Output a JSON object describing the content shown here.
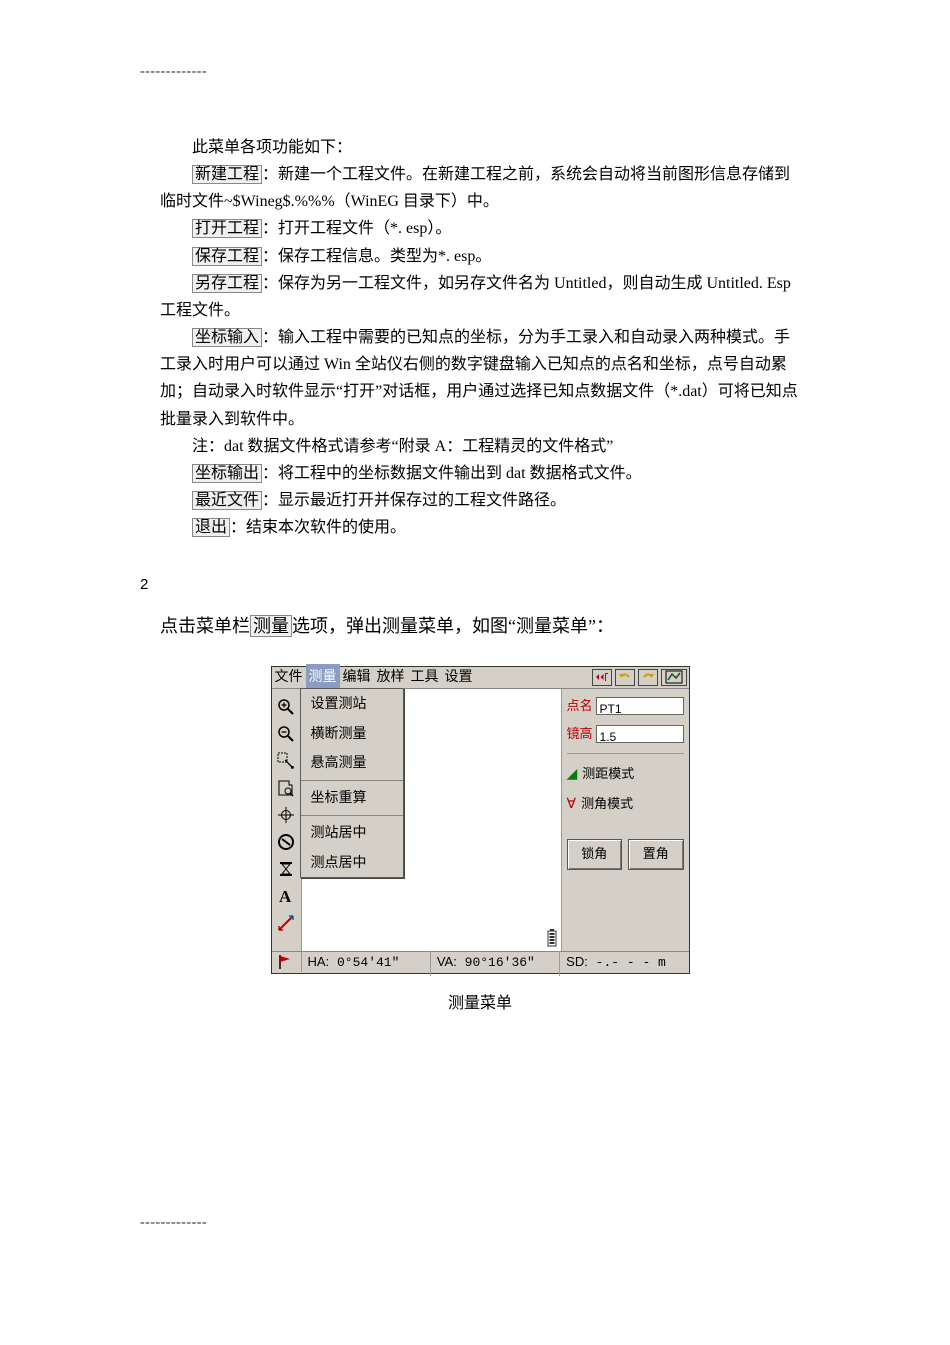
{
  "dashes": "-------------",
  "text": {
    "intro": "此菜单各项功能如下：",
    "p1_label": "新建工程",
    "p1_rest": "：新建一个工程文件。在新建工程之前，系统会自动将当前图形信息存储到临时文件~$Wineg$.%%%（WinEG 目录下）中。",
    "p2_label": "打开工程",
    "p2_rest": "：打开工程文件（*. esp）。",
    "p3_label": "保存工程",
    "p3_rest": "：保存工程信息。类型为*. esp。",
    "p4_label": "另存工程",
    "p4_rest": "：保存为另一工程文件，如另存文件名为 Untitled，则自动生成 Untitled. Esp 工程文件。",
    "p5_label": "坐标输入",
    "p5_rest": "：输入工程中需要的已知点的坐标，分为手工录入和自动录入两种模式。手工录入时用户可以通过 Win 全站仪右侧的数字键盘输入已知点的点名和坐标，点号自动累加；自动录入时软件显示“打开”对话框，用户通过选择已知点数据文件（*.dat）可将已知点批量录入到软件中。",
    "p6_note": "注：dat 数据文件格式请参考“附录 A：工程精灵的文件格式”",
    "p7_label": "坐标输出",
    "p7_rest": "：将工程中的坐标数据文件输出到 dat 数据格式文件。",
    "p8_label": "最近文件",
    "p8_rest": "：显示最近打开并保存过的工程文件路径。",
    "p9_label": "退出",
    "p9_rest": "：结束本次软件的使用。",
    "section_num": "2",
    "lead_pre": "点击菜单栏",
    "lead_box": "测量",
    "lead_post": "选项，弹出测量菜单，如图“测量菜单”："
  },
  "app": {
    "menubar": [
      "文件",
      "测量",
      "编辑",
      "放样",
      "工具",
      "设置"
    ],
    "active_menu_index": 1,
    "dropdown": [
      "设置测站",
      "横断测量",
      "悬高测量",
      "|",
      "坐标重算",
      "|",
      "测站居中",
      "测点居中"
    ],
    "right": {
      "name_label": "点名",
      "name_value": "PT1",
      "ht_label": "镜高",
      "ht_value": "1.5",
      "mode1": "测距模式",
      "mode2": "测角模式",
      "btn1": "锁角",
      "btn2": "置角"
    },
    "status": {
      "ha_key": "HA:",
      "ha_val": "0°54'41\"",
      "va_key": "VA:",
      "va_val": "90°16'36\"",
      "sd_key": "SD:",
      "sd_val": "-.- - -  m"
    },
    "caption": "测量菜单"
  },
  "colors": {
    "winbg": "#d4d0c8",
    "menu_active": "#8a9cc0",
    "red": "#b80000",
    "green": "#0a7a0a"
  }
}
